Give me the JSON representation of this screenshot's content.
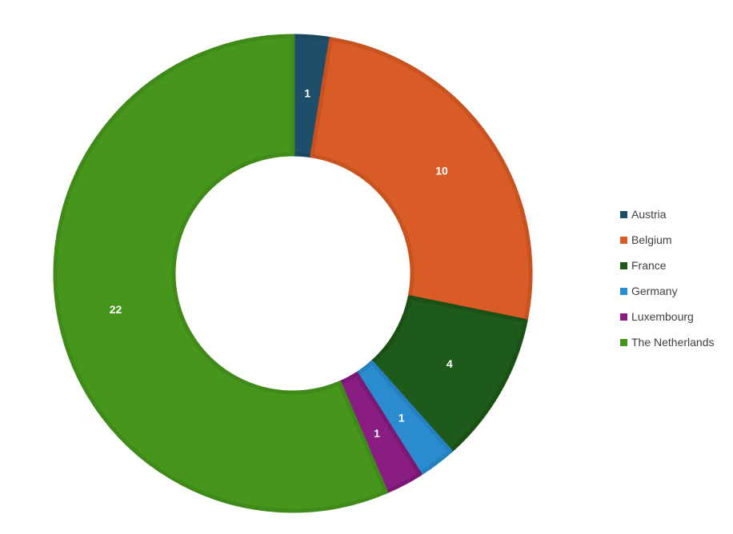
{
  "chart_data": {
    "type": "pie",
    "variant": "donut",
    "title": "",
    "labels": [
      "Austria",
      "Belgium",
      "France",
      "Germany",
      "Luxembourg",
      "The Netherlands"
    ],
    "values": [
      1,
      10,
      4,
      1,
      1,
      22
    ],
    "colors": [
      "#1f4e6b",
      "#d95b25",
      "#1e5a1a",
      "#2a8bcf",
      "#8a1d82",
      "#47961c"
    ],
    "border_colors": [
      "#1b4761",
      "#c95320",
      "#1a4f16",
      "#2580c0",
      "#7a1873",
      "#3f8a18"
    ],
    "legend_position": "right",
    "data_labels": true
  },
  "legend": {
    "items": [
      {
        "label": "Austria",
        "color": "#1f4e6b"
      },
      {
        "label": "Belgium",
        "color": "#d95b25"
      },
      {
        "label": "France",
        "color": "#1e5a1a"
      },
      {
        "label": "Germany",
        "color": "#2a8bcf"
      },
      {
        "label": "Luxembourg",
        "color": "#8a1d82"
      },
      {
        "label": "The Netherlands",
        "color": "#47961c"
      }
    ]
  }
}
